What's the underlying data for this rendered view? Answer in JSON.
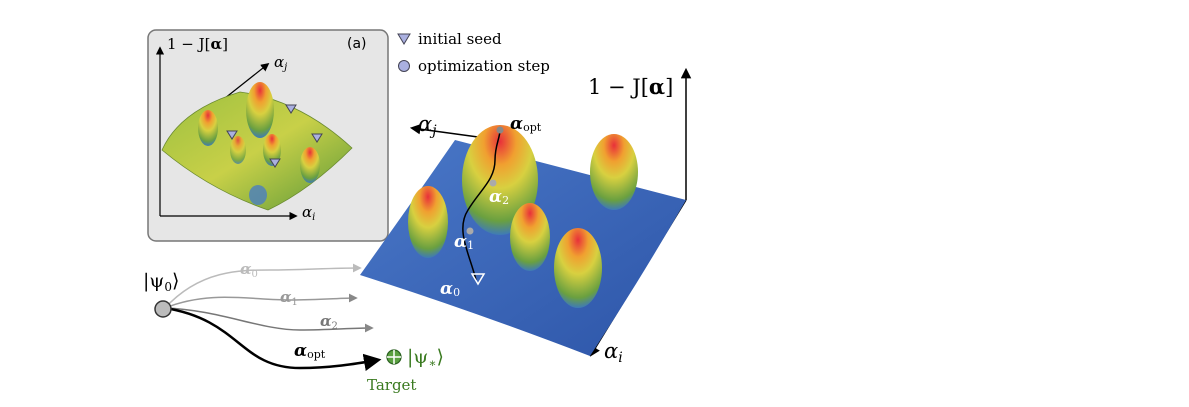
{
  "inset": {
    "axis_z": {
      "pre": "1 − J[",
      "bold": "α",
      "post": "]"
    },
    "panel_label": "(a)",
    "axis_j": {
      "symbol": "α",
      "sub": "j"
    },
    "axis_i": {
      "symbol": "α",
      "sub": "i"
    }
  },
  "legend": {
    "items": [
      {
        "label": "initial seed"
      },
      {
        "label": "optimization step"
      }
    ]
  },
  "main": {
    "axis_z": {
      "pre": "1 − J[",
      "bold": "α",
      "post": "]"
    },
    "axis_j": {
      "symbol": "α",
      "sub": "j"
    },
    "axis_i": {
      "symbol": "α",
      "sub": "i"
    },
    "points": [
      {
        "symbol": "α",
        "sub": "opt"
      },
      {
        "symbol": "α",
        "sub": "2"
      },
      {
        "symbol": "α",
        "sub": "1"
      },
      {
        "symbol": "α",
        "sub": "0"
      }
    ]
  },
  "trajectories": {
    "start": {
      "pre": "|ψ",
      "sub": "0",
      "post": "⟩"
    },
    "controls": [
      {
        "symbol": "α",
        "sub": "0"
      },
      {
        "symbol": "α",
        "sub": "1"
      },
      {
        "symbol": "α",
        "sub": "2"
      },
      {
        "symbol": "α",
        "sub": "opt"
      }
    ],
    "target": {
      "pre": "|ψ",
      "sub": "∗",
      "post": "⟩"
    },
    "target_label": "Target"
  }
}
